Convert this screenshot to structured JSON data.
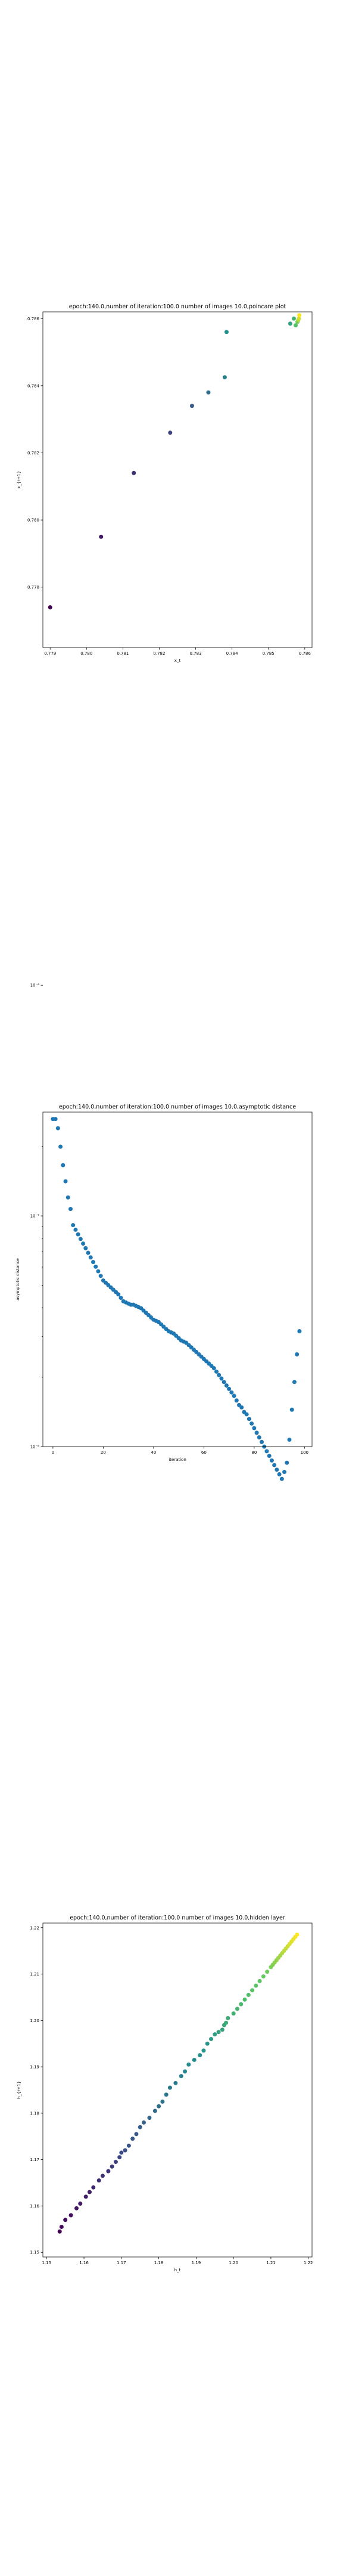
{
  "chart_data": [
    {
      "type": "scatter",
      "title": "epoch:140.0,number of iteration:100.0 number of images 10.0,poincare plot",
      "xlabel": "x_t",
      "ylabel": "x_{t+1}",
      "xlim": [
        0.7788,
        0.7862
      ],
      "ylim": [
        0.7762,
        0.7862
      ],
      "xticks": [
        "0.779",
        "0.780",
        "0.781",
        "0.782",
        "0.783",
        "0.784",
        "0.785",
        "0.786"
      ],
      "yticks": [
        "0.778",
        "0.780",
        "0.782",
        "0.784",
        "0.786"
      ],
      "colormap": "viridis",
      "series": [
        {
          "x": [
            0.779,
            0.7804,
            0.7813,
            0.7823,
            0.7829,
            0.78335,
            0.7838,
            0.78385,
            0.7856,
            0.7857,
            0.78575,
            0.7858,
            0.78582,
            0.78584,
            0.78585
          ],
          "y": [
            0.7774,
            0.7795,
            0.7814,
            0.7826,
            0.7834,
            0.7838,
            0.78425,
            0.7856,
            0.78585,
            0.786,
            0.7858,
            0.7859,
            0.78595,
            0.786,
            0.7861
          ]
        }
      ]
    },
    {
      "type": "scatter",
      "title": "epoch:140.0,number of iteration:100.0  number of images 10.0,asymptotic distance",
      "xlabel": "iteration",
      "ylabel": "asymptotic distance",
      "xlim": [
        -4,
        103
      ],
      "ylim_log10": [
        -8,
        -6.55
      ],
      "xticks": [
        "0",
        "20",
        "40",
        "60",
        "80",
        "100"
      ],
      "yticks": [
        "10⁻⁸",
        "10⁻⁷",
        "10⁻⁶"
      ],
      "color": "#1f77b4",
      "series": [
        {
          "x": [
            0,
            1,
            2,
            3,
            4,
            5,
            6,
            7,
            8,
            9,
            10,
            11,
            12,
            13,
            14,
            15,
            16,
            17,
            18,
            19,
            20,
            21,
            22,
            23,
            24,
            25,
            26,
            27,
            28,
            29,
            30,
            31,
            32,
            33,
            34,
            35,
            36,
            37,
            38,
            39,
            40,
            41,
            42,
            43,
            44,
            45,
            46,
            47,
            48,
            49,
            50,
            51,
            52,
            53,
            54,
            55,
            56,
            57,
            58,
            59,
            60,
            61,
            62,
            63,
            64,
            65,
            66,
            67,
            68,
            69,
            70,
            71,
            72,
            73,
            74,
            75,
            76,
            77,
            78,
            79,
            80,
            81,
            82,
            83,
            84,
            85,
            86,
            87,
            88,
            89,
            90,
            91,
            92,
            93,
            94,
            95,
            96,
            97,
            98
          ],
          "log10_y": [
            -6.58,
            -6.58,
            -6.62,
            -6.7,
            -6.78,
            -6.85,
            -6.92,
            -6.97,
            -7.04,
            -7.06,
            -7.08,
            -7.1,
            -7.12,
            -7.14,
            -7.16,
            -7.18,
            -7.2,
            -7.22,
            -7.24,
            -7.26,
            -7.28,
            -7.29,
            -7.3,
            -7.31,
            -7.32,
            -7.33,
            -7.34,
            -7.355,
            -7.37,
            -7.375,
            -7.38,
            -7.385,
            -7.385,
            -7.39,
            -7.395,
            -7.4,
            -7.41,
            -7.42,
            -7.43,
            -7.44,
            -7.45,
            -7.455,
            -7.46,
            -7.47,
            -7.48,
            -7.49,
            -7.5,
            -7.505,
            -7.51,
            -7.52,
            -7.53,
            -7.54,
            -7.545,
            -7.55,
            -7.56,
            -7.57,
            -7.58,
            -7.59,
            -7.6,
            -7.61,
            -7.62,
            -7.63,
            -7.64,
            -7.65,
            -7.66,
            -7.675,
            -7.69,
            -7.705,
            -7.72,
            -7.735,
            -7.75,
            -7.765,
            -7.78,
            -7.8,
            -7.82,
            -7.83,
            -7.85,
            -7.86,
            -7.88,
            -7.9,
            -7.92,
            -7.94,
            -7.96,
            -7.98,
            -8.0,
            -8.02,
            -8.04,
            -8.06,
            -8.08,
            -8.1,
            -8.12,
            -8.14,
            -8.11,
            -8.07,
            -7.97,
            -7.84,
            -7.72,
            -7.6,
            -7.5
          ]
        }
      ]
    },
    {
      "type": "scatter",
      "title": "epoch:140.0,number of iteration:100.0  number of images 10.0,hidden layer",
      "xlabel": "h_t",
      "ylabel": "h_{t+1}",
      "xlim": [
        1.149,
        1.221
      ],
      "ylim": [
        1.149,
        1.221
      ],
      "xticks": [
        "1.15",
        "1.16",
        "1.17",
        "1.18",
        "1.19",
        "1.20",
        "1.21",
        "1.22"
      ],
      "yticks": [
        "1.15",
        "1.16",
        "1.17",
        "1.18",
        "1.19",
        "1.20",
        "1.21",
        "1.22"
      ],
      "colormap": "viridis",
      "series": [
        {
          "x": [
            1.1535,
            1.154,
            1.155,
            1.1565,
            1.158,
            1.159,
            1.1605,
            1.1615,
            1.1625,
            1.164,
            1.165,
            1.1665,
            1.1675,
            1.1685,
            1.1695,
            1.17,
            1.171,
            1.172,
            1.173,
            1.174,
            1.175,
            1.176,
            1.1775,
            1.179,
            1.18,
            1.181,
            1.182,
            1.183,
            1.1845,
            1.186,
            1.187,
            1.188,
            1.1895,
            1.191,
            1.192,
            1.193,
            1.194,
            1.195,
            1.196,
            1.197,
            1.1975,
            1.198,
            1.1985,
            1.2,
            1.201,
            1.202,
            1.203,
            1.204,
            1.205,
            1.206,
            1.207,
            1.208,
            1.209,
            1.21,
            1.2105,
            1.211,
            1.2115,
            1.212,
            1.2125,
            1.213,
            1.2135,
            1.214,
            1.2145,
            1.215,
            1.2155,
            1.216,
            1.2165,
            1.217
          ],
          "y": [
            1.1545,
            1.1555,
            1.157,
            1.158,
            1.1595,
            1.1605,
            1.162,
            1.163,
            1.164,
            1.1655,
            1.1665,
            1.1675,
            1.1685,
            1.1695,
            1.1705,
            1.1715,
            1.172,
            1.173,
            1.1745,
            1.1755,
            1.177,
            1.178,
            1.179,
            1.1805,
            1.1815,
            1.1825,
            1.184,
            1.1855,
            1.1865,
            1.188,
            1.189,
            1.1905,
            1.1915,
            1.1925,
            1.1935,
            1.195,
            1.196,
            1.197,
            1.1975,
            1.198,
            1.199,
            1.1995,
            1.2005,
            1.2015,
            1.2025,
            1.2035,
            1.2045,
            1.2055,
            1.2065,
            1.2075,
            1.2085,
            1.2095,
            1.2105,
            1.2115,
            1.212,
            1.2125,
            1.213,
            1.2135,
            1.214,
            1.2145,
            1.215,
            1.2155,
            1.216,
            1.2165,
            1.217,
            1.2175,
            1.218,
            1.2185
          ]
        }
      ]
    }
  ]
}
